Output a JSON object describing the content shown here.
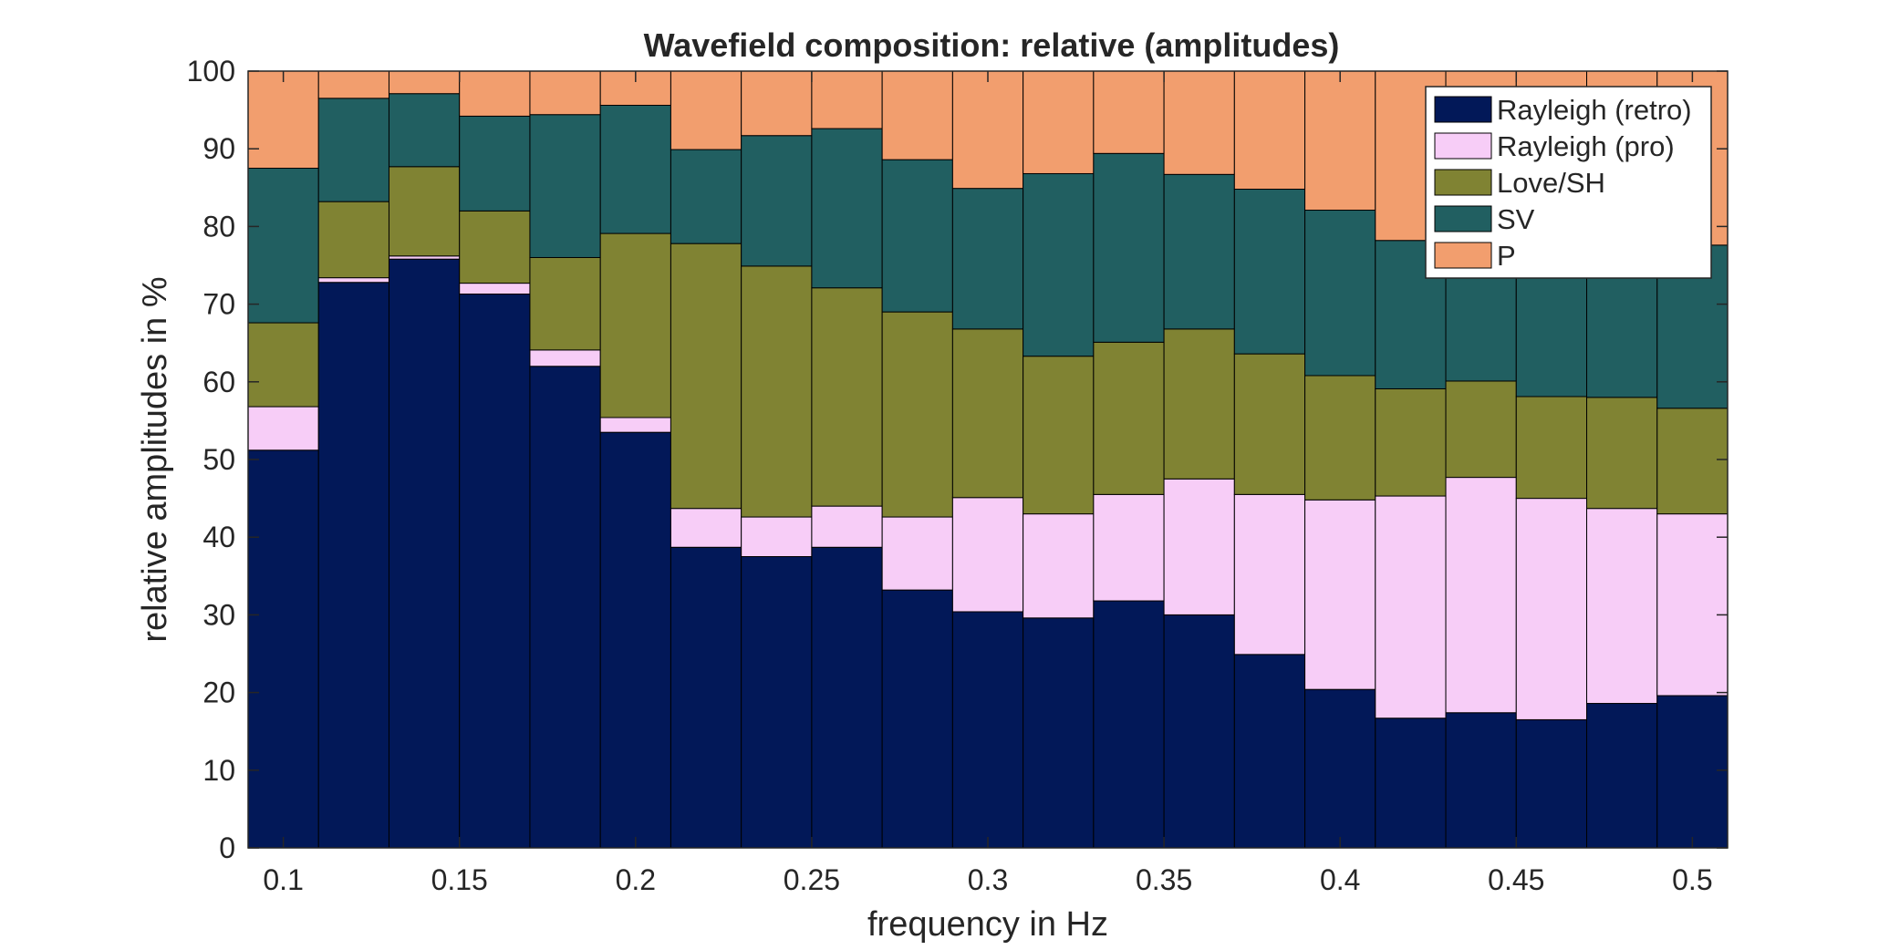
{
  "chart_data": {
    "type": "bar",
    "stacked": true,
    "title": "Wavefield composition: relative (amplitudes)",
    "xlabel": "frequency in Hz",
    "ylabel": "relative amplitudes in %",
    "xlim": [
      0.09,
      0.51
    ],
    "ylim": [
      0,
      100
    ],
    "xticks": [
      "0.1",
      "0.15",
      "0.2",
      "0.25",
      "0.3",
      "0.35",
      "0.4",
      "0.45",
      "0.5"
    ],
    "yticks": [
      "0",
      "10",
      "20",
      "30",
      "40",
      "50",
      "60",
      "70",
      "80",
      "90",
      "100"
    ],
    "grid": false,
    "legend_position": "top-right",
    "bar_width": 0.02,
    "x": [
      0.1,
      0.12,
      0.14,
      0.16,
      0.18,
      0.2,
      0.22,
      0.24,
      0.26,
      0.28,
      0.3,
      0.32,
      0.34,
      0.36,
      0.38,
      0.4,
      0.42,
      0.44,
      0.46,
      0.48,
      0.5
    ],
    "series": [
      {
        "name": "Rayleigh (retro)",
        "color": "#021858",
        "values": [
          51.2,
          72.8,
          75.8,
          71.3,
          62.0,
          53.5,
          38.7,
          37.5,
          38.7,
          33.2,
          30.4,
          29.6,
          31.8,
          30.0,
          24.9,
          20.4,
          16.7,
          17.4,
          16.5,
          18.6,
          19.6
        ]
      },
      {
        "name": "Rayleigh (pro)",
        "color": "#f7cdf7",
        "values": [
          5.6,
          0.6,
          0.4,
          1.4,
          2.1,
          1.9,
          5.0,
          5.1,
          5.3,
          9.4,
          14.7,
          13.4,
          13.7,
          17.5,
          20.6,
          24.4,
          28.6,
          30.3,
          28.5,
          25.1,
          23.4
        ]
      },
      {
        "name": "Love/SH",
        "color": "#808333",
        "values": [
          10.8,
          9.8,
          11.5,
          9.3,
          11.9,
          23.7,
          34.1,
          32.3,
          28.1,
          26.4,
          21.7,
          20.3,
          19.6,
          19.3,
          18.1,
          16.0,
          13.8,
          12.4,
          13.1,
          14.3,
          13.6
        ]
      },
      {
        "name": "SV",
        "color": "#215f61",
        "values": [
          19.9,
          13.3,
          9.4,
          12.2,
          18.4,
          16.5,
          12.1,
          16.8,
          20.5,
          19.6,
          18.1,
          23.5,
          24.3,
          19.9,
          21.2,
          21.3,
          19.1,
          18.6,
          20.3,
          20.7,
          21.0
        ]
      },
      {
        "name": "P",
        "color": "#f29e6e",
        "values": [
          12.5,
          3.5,
          2.9,
          5.8,
          5.6,
          4.4,
          10.1,
          8.3,
          7.4,
          11.4,
          15.1,
          13.2,
          10.6,
          13.3,
          15.2,
          17.9,
          21.8,
          21.3,
          21.6,
          21.3,
          22.4
        ]
      }
    ]
  }
}
